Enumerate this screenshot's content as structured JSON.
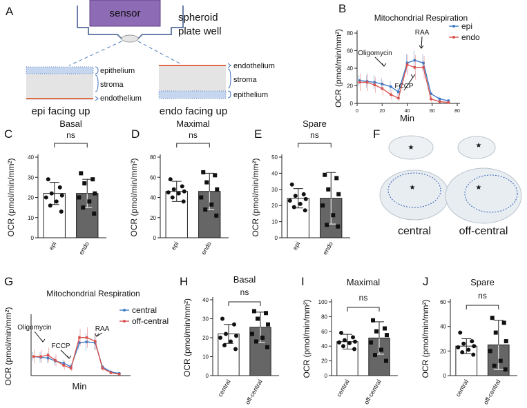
{
  "panel_labels": [
    "A",
    "B",
    "C",
    "D",
    "E",
    "F",
    "G",
    "H",
    "I",
    "J"
  ],
  "diagram_a": {
    "sensor": "sensor",
    "well_label": [
      "spheroid",
      "plate well"
    ],
    "left_layers": [
      "epithelium",
      "stroma",
      "endothelium"
    ],
    "left_caption": "epi facing up",
    "right_layers": [
      "endothelium",
      "stroma",
      "epithelium"
    ],
    "right_caption": "endo facing up"
  },
  "diagram_f": {
    "captions": [
      "central",
      "off-central"
    ]
  },
  "chart_data": [
    {
      "type": "line",
      "title": "Mitochondrial Respiration",
      "xlabel": "Min",
      "ylabel": "OCR (pmol/min/mm²)",
      "x": [
        2,
        8,
        14,
        20,
        27,
        33,
        40,
        46,
        53,
        59,
        66,
        73
      ],
      "series": [
        {
          "name": "epi",
          "color": "#3d7cc9",
          "values": [
            26,
            25,
            24,
            22,
            19,
            13,
            46,
            49,
            46,
            11,
            5,
            3
          ],
          "errors": [
            6,
            7,
            8,
            7,
            6,
            4,
            10,
            11,
            10,
            4,
            3,
            2
          ]
        },
        {
          "name": "endo",
          "color": "#d9534f",
          "values": [
            24,
            24,
            21,
            17,
            10,
            6,
            44,
            41,
            41,
            5,
            2,
            1
          ],
          "errors": [
            10,
            10,
            9,
            8,
            6,
            3,
            12,
            14,
            13,
            4,
            2,
            1
          ]
        }
      ],
      "xlim": [
        0,
        80
      ],
      "ylim": [
        0,
        80
      ],
      "xticks": [
        0,
        20,
        40,
        60,
        80
      ],
      "yticks": [
        0,
        20,
        40,
        60,
        80
      ],
      "annotations": [
        "Oligomycin",
        "FCCP",
        "RAA"
      ],
      "legend": "upper right"
    },
    {
      "type": "bar",
      "title": "Basal",
      "ylabel": "OCR (pmol/min/mm²)",
      "categories": [
        "epi",
        "endo"
      ],
      "values": [
        22,
        22
      ],
      "errors": [
        5.5,
        7
      ],
      "colors": [
        "#ffffff",
        "#666666"
      ],
      "points": [
        [
          29,
          25,
          22,
          21,
          20,
          18,
          16,
          13
        ],
        [
          32,
          29,
          27,
          22,
          20,
          18,
          15,
          12
        ]
      ],
      "annotation": "ns",
      "ylim": [
        0,
        40
      ],
      "yticks": [
        0,
        10,
        20,
        30,
        40
      ]
    },
    {
      "type": "bar",
      "title": "Maximal",
      "ylabel": "OCR (pmol/min/mm²)",
      "categories": [
        "epi",
        "endo"
      ],
      "values": [
        46,
        46
      ],
      "errors": [
        10,
        18
      ],
      "colors": [
        "#ffffff",
        "#666666"
      ],
      "points": [
        [
          58,
          51,
          48,
          46,
          45,
          44,
          40,
          36
        ],
        [
          65,
          62,
          55,
          48,
          40,
          33,
          28,
          22
        ]
      ],
      "annotation": "ns",
      "ylim": [
        0,
        80
      ],
      "yticks": [
        0,
        20,
        40,
        60,
        80
      ]
    },
    {
      "type": "bar",
      "title": "Spare",
      "ylabel": "OCR (pmol/min/mm²)",
      "categories": [
        "epi",
        "endo"
      ],
      "values": [
        24.5,
        24.5
      ],
      "errors": [
        6,
        16
      ],
      "colors": [
        "#ffffff",
        "#666666"
      ],
      "points": [
        [
          33,
          27,
          26,
          24,
          23,
          21,
          19,
          17
        ],
        [
          39,
          37,
          30,
          27,
          20,
          14,
          8,
          7
        ]
      ],
      "annotation": "ns",
      "ylim": [
        0,
        50
      ],
      "yticks": [
        0,
        10,
        20,
        30,
        40,
        50
      ]
    },
    {
      "type": "line",
      "title": "Mitochondrial Respiration",
      "xlabel": "Min",
      "ylabel": "OCR (pmol/min/mm²)",
      "x": [
        2,
        8,
        14,
        20,
        27,
        33,
        40,
        46,
        53,
        59,
        66,
        73
      ],
      "series": [
        {
          "name": "central",
          "color": "#3d7cc9",
          "values": [
            26,
            25,
            24,
            20,
            17,
            12,
            45,
            46,
            45,
            12,
            5,
            3
          ],
          "errors": [
            6,
            7,
            7,
            6,
            5,
            4,
            10,
            12,
            10,
            4,
            3,
            2
          ]
        },
        {
          "name": "off-central",
          "color": "#d9534f",
          "values": [
            26,
            26,
            28,
            21,
            14,
            10,
            52,
            52,
            47,
            10,
            4,
            2
          ],
          "errors": [
            9,
            9,
            10,
            8,
            6,
            4,
            12,
            14,
            12,
            4,
            2,
            1
          ]
        }
      ],
      "xlim": [
        0,
        80
      ],
      "ylim": [
        0,
        80
      ],
      "annotations": [
        "Oligomycin",
        "FCCP",
        "RAA"
      ],
      "legend": "upper right"
    },
    {
      "type": "bar",
      "title": "Basal",
      "ylabel": "OCR (pmol/min/mm²)",
      "categories": [
        "central",
        "off-central"
      ],
      "values": [
        22,
        25.5
      ],
      "errors": [
        5,
        8
      ],
      "colors": [
        "#ffffff",
        "#666666"
      ],
      "points": [
        [
          30,
          27,
          22,
          21,
          20,
          18,
          16,
          14
        ],
        [
          34,
          33,
          30,
          27,
          22,
          20,
          18,
          15
        ]
      ],
      "annotation": "ns",
      "ylim": [
        0,
        40
      ],
      "yticks": [
        0,
        10,
        20,
        30,
        40
      ]
    },
    {
      "type": "bar",
      "title": "Maximal",
      "ylabel": "OCR (pmol/min/mm²)",
      "categories": [
        "central",
        "off-central"
      ],
      "values": [
        46,
        51
      ],
      "errors": [
        10,
        22
      ],
      "colors": [
        "#ffffff",
        "#666666"
      ],
      "points": [
        [
          58,
          52,
          48,
          46,
          45,
          44,
          40,
          36
        ],
        [
          75,
          64,
          60,
          55,
          45,
          35,
          28,
          20
        ]
      ],
      "annotation": "ns",
      "ylim": [
        0,
        100
      ],
      "yticks": [
        0,
        20,
        40,
        60,
        80,
        100
      ]
    },
    {
      "type": "bar",
      "title": "Spare",
      "ylabel": "OCR (pmol/min/mm²)",
      "categories": [
        "central",
        "off-central"
      ],
      "values": [
        24,
        25
      ],
      "errors": [
        6,
        20
      ],
      "colors": [
        "#ffffff",
        "#666666"
      ],
      "points": [
        [
          35,
          28,
          26,
          24,
          23,
          21,
          19,
          17
        ],
        [
          47,
          43,
          35,
          28,
          20,
          12,
          8,
          5
        ]
      ],
      "annotation": "ns",
      "ylim": [
        0,
        60
      ],
      "yticks": [
        0,
        20,
        40,
        60
      ]
    }
  ]
}
